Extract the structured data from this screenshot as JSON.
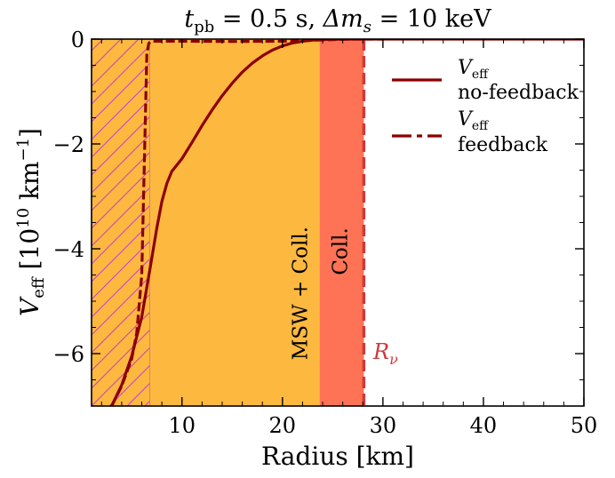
{
  "chart_data": {
    "type": "line",
    "title_parts": {
      "t": "t",
      "t_sub": "pb",
      "eq1": " = 0.5 s, ",
      "delta": "Δm",
      "delta_sub": "s",
      "eq2": " = 10 keV"
    },
    "xlabel": "Radius [km]",
    "ylabel_parts": {
      "main": "V",
      "sub": "eff",
      "rest": " [10",
      "exp": "10",
      "unit": " km",
      "unit_exp": "−1",
      "close": "]"
    },
    "xlim": [
      1,
      50
    ],
    "ylim": [
      -7,
      0
    ],
    "x_ticks": [
      10,
      20,
      30,
      40,
      50
    ],
    "y_ticks": [
      0,
      -2,
      -4,
      -6
    ],
    "y_tick_labels": [
      "0",
      "−2",
      "−4",
      "−6"
    ],
    "regions": [
      {
        "name": "hatched-region",
        "x0": 1,
        "x1": 6.8,
        "color": "#fdb83f",
        "hatch": "#c840c8"
      },
      {
        "name": "msw-coll-region",
        "x0": 6.8,
        "x1": 23.7,
        "color": "#fdb83f",
        "label": "MSW + Coll."
      },
      {
        "name": "coll-region",
        "x0": 23.7,
        "x1": 28.1,
        "color": "#fe7255",
        "label": "Coll."
      }
    ],
    "r_nu": {
      "x": 28.1,
      "label": "R",
      "label_sub": "ν",
      "color": "#cc3a3a"
    },
    "series": [
      {
        "name": "no-feedback",
        "legend_main": "V",
        "legend_sub": "eff",
        "legend_text": "no-feedback",
        "style": "solid",
        "color": "#8b0000",
        "x": [
          3.0,
          4.0,
          5.0,
          6.0,
          6.8,
          7.5,
          8.0,
          8.5,
          9.0,
          9.5,
          10.0,
          11.0,
          12.0,
          13.0,
          14.0,
          15.0,
          16.0,
          17.0,
          18.0,
          19.0,
          20.0,
          21.0,
          22.0,
          23.0,
          24.0,
          25.0,
          26.0,
          27.0,
          28.0,
          30.0,
          40.0,
          50.0
        ],
        "y": [
          -7.0,
          -6.6,
          -6.05,
          -5.3,
          -4.4,
          -3.6,
          -3.1,
          -2.75,
          -2.52,
          -2.4,
          -2.28,
          -1.97,
          -1.65,
          -1.35,
          -1.08,
          -0.84,
          -0.63,
          -0.46,
          -0.32,
          -0.21,
          -0.13,
          -0.075,
          -0.04,
          -0.02,
          -0.008,
          -0.003,
          -0.001,
          0,
          0,
          0,
          0,
          0
        ]
      },
      {
        "name": "feedback",
        "legend_main": "V",
        "legend_sub": "eff",
        "legend_text": "feedback",
        "style": "dash-dot",
        "color": "#8b0000",
        "x": [
          3.0,
          4.0,
          5.0,
          5.5,
          6.0,
          6.3,
          6.5,
          6.7,
          7.0,
          10.0,
          15.0,
          20.0,
          22.0,
          24.0,
          26.0,
          28.0,
          30.0
        ],
        "y": [
          -7.0,
          -6.62,
          -6.1,
          -5.6,
          -4.5,
          -2.0,
          -0.3,
          -0.08,
          -0.04,
          -0.04,
          -0.045,
          -0.04,
          -0.03,
          -0.015,
          -0.005,
          0,
          0
        ]
      }
    ]
  }
}
